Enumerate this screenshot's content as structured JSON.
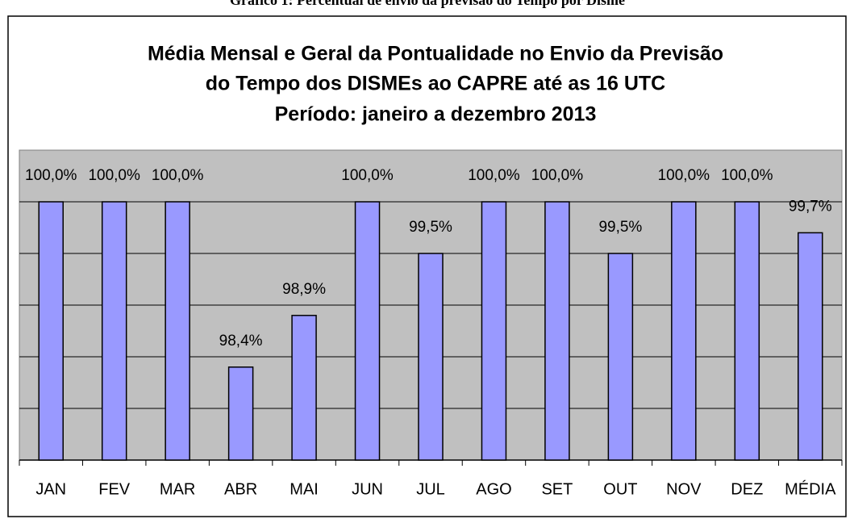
{
  "caption": "Gráfico 1: Percentual de envio da previsão do Tempo por Disme",
  "chart_data": {
    "type": "bar",
    "title": [
      "Média Mensal e Geral da Pontualidade no Envio da Previsão",
      "do Tempo dos DISMEs ao CAPRE até as 16 UTC",
      "Período: janeiro a dezembro 2013"
    ],
    "categories": [
      "JAN",
      "FEV",
      "MAR",
      "ABR",
      "MAI",
      "JUN",
      "JUL",
      "AGO",
      "SET",
      "OUT",
      "NOV",
      "DEZ",
      "MÉDIA"
    ],
    "values": [
      100,
      100,
      100,
      98.4,
      98.9,
      100,
      99.5,
      100,
      100,
      99.5,
      100,
      100,
      99.7
    ],
    "value_labels": [
      "100,0%",
      "100,0%",
      "100,0%",
      "98,4%",
      "98,9%",
      "100,0%",
      "99,5%",
      "100,0%",
      "100,0%",
      "99,5%",
      "100,0%",
      "100,0%",
      "99,7%"
    ],
    "color": "#9999ff",
    "ylim": [
      97.5,
      100.5
    ],
    "yticks": [
      98,
      98.5,
      99,
      99.5,
      100
    ],
    "grid": true
  }
}
